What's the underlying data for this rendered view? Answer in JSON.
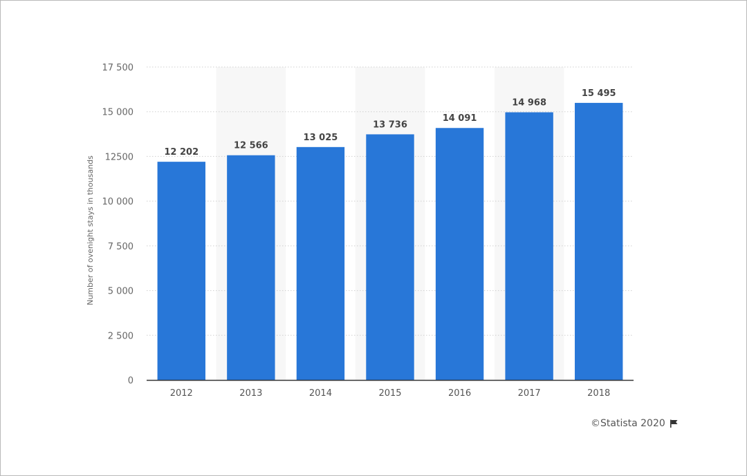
{
  "chart_data": {
    "type": "bar",
    "categories": [
      "2012",
      "2013",
      "2014",
      "2015",
      "2016",
      "2017",
      "2018"
    ],
    "values": [
      12202,
      12566,
      13025,
      13736,
      14091,
      14968,
      15495
    ],
    "value_labels": [
      "12 202",
      "12 566",
      "13 025",
      "13 736",
      "14 091",
      "14 968",
      "15 495"
    ],
    "title": "",
    "xlabel": "",
    "ylabel": "Number of ovenight stays in thousands",
    "ylim": [
      0,
      17500
    ],
    "yticks": [
      0,
      2500,
      5000,
      7500,
      10000,
      12500,
      15000,
      17500
    ],
    "ytick_labels": [
      "0",
      "2 500",
      "5 000",
      "7 500",
      "10 000",
      "12500",
      "15 000",
      "17 500"
    ],
    "grid": true,
    "bar_color": "#2877d8"
  },
  "credit": {
    "text": "©Statista 2020",
    "icon": "flag-icon"
  }
}
